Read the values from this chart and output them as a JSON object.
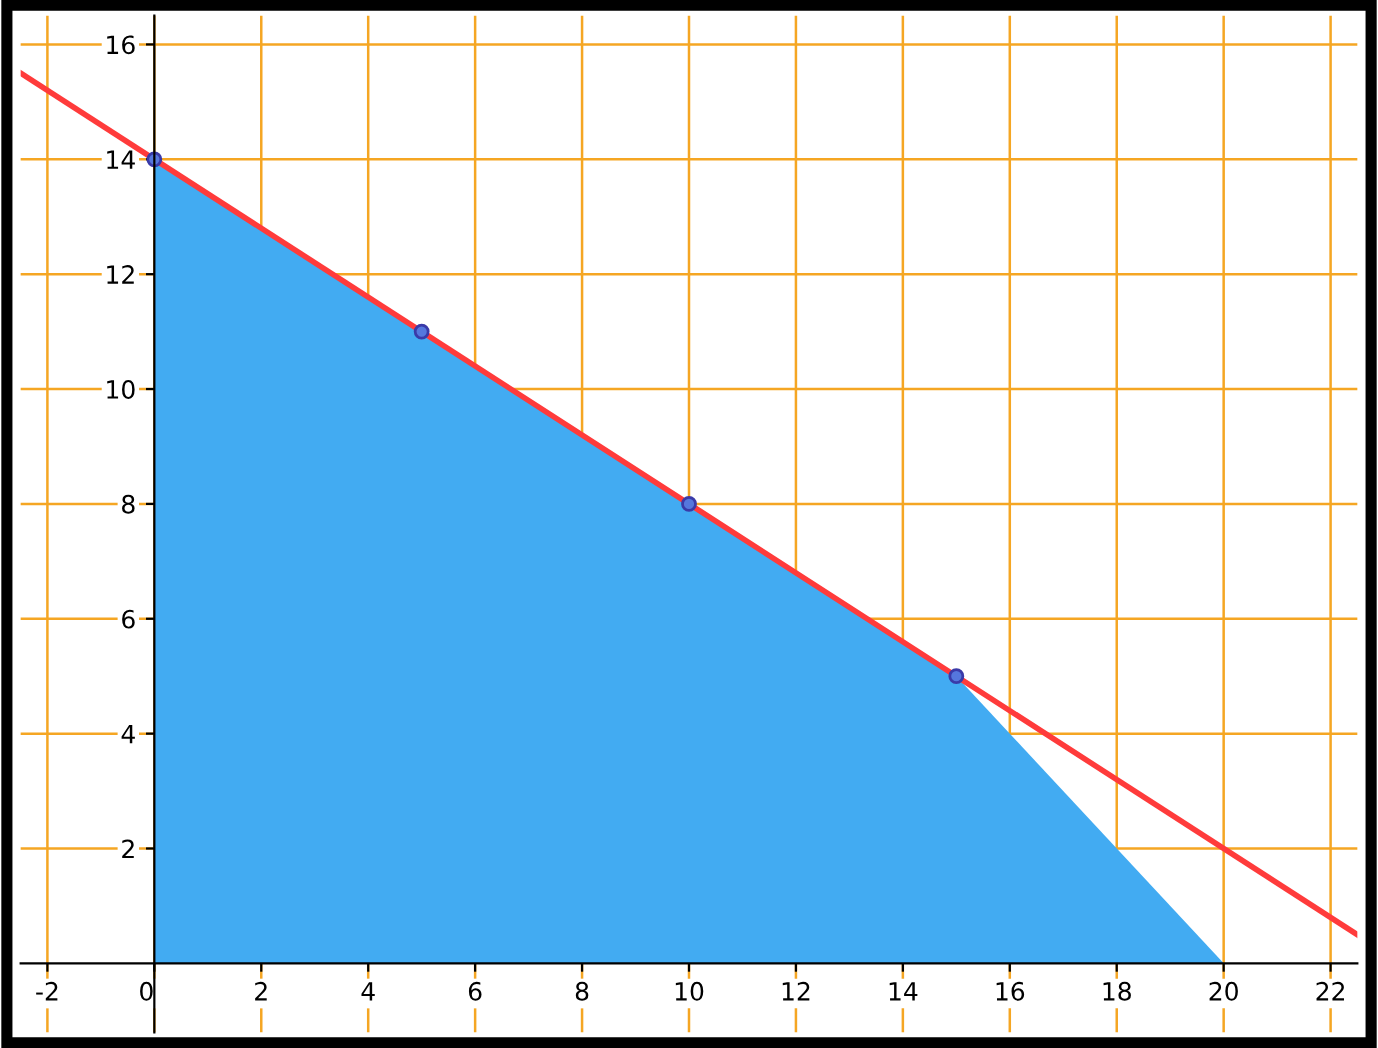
{
  "chart_data": {
    "type": "area",
    "xlim": [
      -2.5,
      22.5
    ],
    "ylim": [
      -1.2,
      16.5
    ],
    "xticks": [
      -2,
      0,
      2,
      4,
      6,
      8,
      10,
      12,
      14,
      16,
      18,
      20,
      22
    ],
    "yticks": [
      2,
      4,
      6,
      8,
      10,
      12,
      14,
      16
    ],
    "grid": true,
    "marker": "none",
    "series": [
      {
        "color": "#42abf2",
        "x": [
          0,
          15,
          20
        ],
        "values": [
          14,
          5,
          0
        ]
      },
      {
        "type": "line",
        "color": "#ff3b3b",
        "x": [
          -2.5,
          22.5
        ],
        "values": [
          15.5,
          0.5
        ]
      },
      {
        "type": "scatter",
        "color": "#3a3aa8",
        "marker": "circle",
        "x": [
          0,
          5,
          10,
          15
        ],
        "values": [
          14,
          11,
          8,
          5
        ]
      }
    ]
  }
}
